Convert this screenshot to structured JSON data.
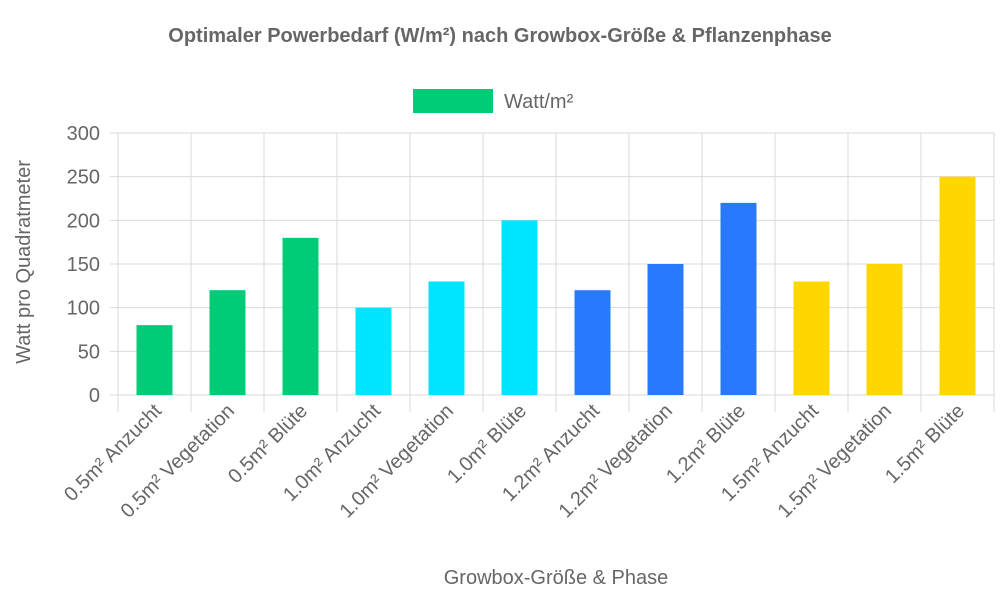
{
  "chart_data": {
    "type": "bar",
    "title": "Optimaler Powerbedarf (W/m²) nach Growbox-Größe & Pflanzenphase",
    "xlabel": "Growbox-Größe & Phase",
    "ylabel": "Watt pro Quadratmeter",
    "ylim": [
      0,
      300
    ],
    "yticks": [
      0,
      50,
      100,
      150,
      200,
      250,
      300
    ],
    "grid": true,
    "legend_position": "top-center",
    "categories": [
      "0.5m² Anzucht",
      "0.5m² Vegetation",
      "0.5m² Blüte",
      "1.0m² Anzucht",
      "1.0m² Vegetation",
      "1.0m² Blüte",
      "1.2m² Anzucht",
      "1.2m² Vegetation",
      "1.2m² Blüte",
      "1.5m² Anzucht",
      "1.5m² Vegetation",
      "1.5m² Blüte"
    ],
    "series": [
      {
        "name": "Watt/m²",
        "values": [
          80,
          120,
          180,
          100,
          130,
          200,
          120,
          150,
          220,
          130,
          150,
          250
        ],
        "colors": [
          "#00cc77",
          "#00cc77",
          "#00cc77",
          "#00e5ff",
          "#00e5ff",
          "#00e5ff",
          "#2979ff",
          "#2979ff",
          "#2979ff",
          "#ffd600",
          "#ffd600",
          "#ffd600"
        ],
        "legend_color": "#00cc77"
      }
    ]
  }
}
